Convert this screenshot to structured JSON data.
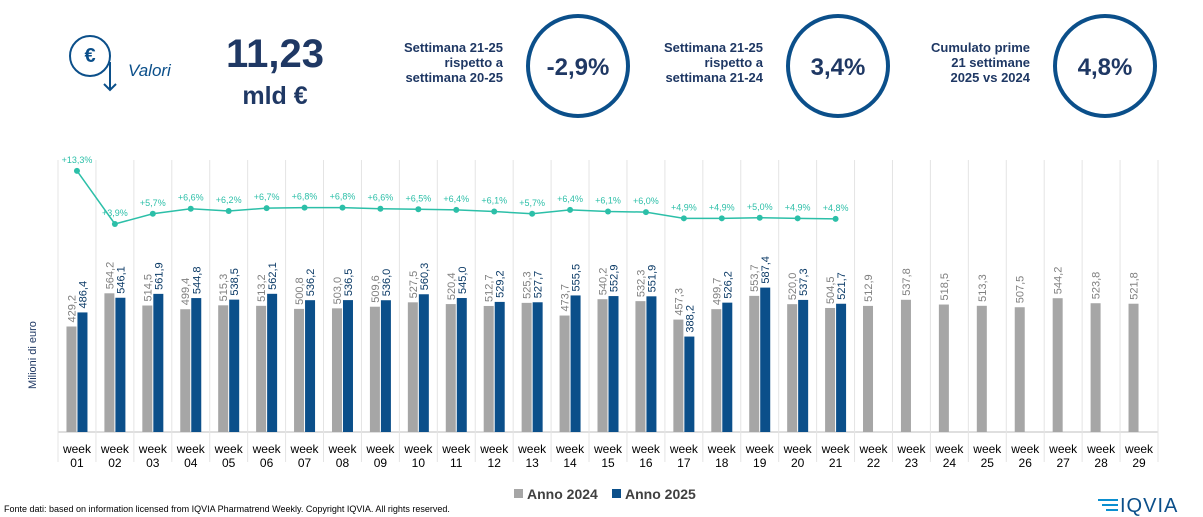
{
  "header": {
    "icon_symbol": "€",
    "icon_label": "Valori",
    "total_value": "11,23",
    "total_unit": "mld €",
    "kpis": [
      {
        "lines": [
          "Settimana 21-25",
          "rispetto a",
          "settimana 20-25"
        ],
        "value": "-2,9%"
      },
      {
        "lines": [
          "Settimana 21-25",
          "rispetto a",
          "settimana 21-24"
        ],
        "value": "3,4%"
      },
      {
        "lines": [
          "Cumulato prime",
          "21 settimane",
          "2025 vs 2024"
        ],
        "value": "4,8%"
      }
    ]
  },
  "chart_data": {
    "type": "bar",
    "y_axis_label": "Milioni di euro",
    "categories": [
      "week 01",
      "week 02",
      "week 03",
      "week 04",
      "week 05",
      "week 06",
      "week 07",
      "week 08",
      "week 09",
      "week 10",
      "week 11",
      "week 12",
      "week 13",
      "week 14",
      "week 15",
      "week 16",
      "week 17",
      "week 18",
      "week 19",
      "week 20",
      "week 21",
      "week 22",
      "week 23",
      "week 24",
      "week 25",
      "week 26",
      "week 27",
      "week 28",
      "week 29"
    ],
    "ylim": [
      0,
      1200
    ],
    "y2lim": [
      0,
      20
    ],
    "legend": "bottom",
    "series": [
      {
        "name": "Anno 2024",
        "color": "#a6a6a6",
        "values": [
          429.2,
          564.2,
          514.5,
          499.4,
          515.3,
          513.2,
          500.8,
          503.0,
          509.6,
          527.5,
          520.4,
          512.7,
          525.3,
          473.7,
          540.2,
          532.3,
          457.3,
          499.7,
          553.7,
          520.0,
          504.5,
          512.9,
          537.8,
          518.5,
          513.3,
          507.5,
          544.2,
          523.8,
          521.8
        ],
        "value_labels": [
          "429,2",
          "564,2",
          "514,5",
          "499,4",
          "515,3",
          "513,2",
          "500,8",
          "503,0",
          "509,6",
          "527,5",
          "520,4",
          "512,7",
          "525,3",
          "473,7",
          "540,2",
          "532,3",
          "457,3",
          "499,7",
          "553,7",
          "520,0",
          "504,5",
          "512,9",
          "537,8",
          "518,5",
          "513,3",
          "507,5",
          "544,2",
          "523,8",
          "521,8"
        ]
      },
      {
        "name": "Anno 2025",
        "color": "#0b4f8a",
        "values": [
          486.4,
          546.1,
          561.9,
          544.8,
          538.5,
          562.1,
          536.2,
          536.5,
          536.0,
          560.3,
          545.0,
          529.2,
          527.7,
          555.5,
          552.9,
          551.9,
          388.2,
          526.2,
          587.4,
          537.3,
          521.7,
          null,
          null,
          null,
          null,
          null,
          null,
          null,
          null
        ],
        "value_labels": [
          "486,4",
          "546,1",
          "561,9",
          "544,8",
          "538,5",
          "562,1",
          "536,2",
          "536,5",
          "536,0",
          "560,3",
          "545,0",
          "529,2",
          "527,7",
          "555,5",
          "552,9",
          "551,9",
          "388,2",
          "526,2",
          "587,4",
          "537,3",
          "521,7",
          null,
          null,
          null,
          null,
          null,
          null,
          null,
          null
        ]
      },
      {
        "type": "line",
        "axis": "y2",
        "color": "#2cbfa8",
        "values": [
          13.3,
          3.9,
          5.7,
          6.6,
          6.2,
          6.7,
          6.8,
          6.8,
          6.6,
          6.5,
          6.4,
          6.1,
          5.7,
          6.4,
          6.1,
          6.0,
          4.9,
          4.9,
          5.0,
          4.9,
          4.8,
          null,
          null,
          null,
          null,
          null,
          null,
          null,
          null
        ],
        "value_labels": [
          "+13,3%",
          "+3,9%",
          "+5,7%",
          "+6,6%",
          "+6,2%",
          "+6,7%",
          "+6,8%",
          "+6,8%",
          "+6,6%",
          "+6,5%",
          "+6,4%",
          "+6,1%",
          "+5,7%",
          "+6,4%",
          "+6,1%",
          "+6,0%",
          "+4,9%",
          "+4,9%",
          "+5,0%",
          "+4,9%",
          "+4,8%",
          null,
          null,
          null,
          null,
          null,
          null,
          null,
          null
        ]
      }
    ]
  },
  "footer": {
    "source": "Fonte dati: based on information licensed from IQVIA Pharmatrend Weekly. Copyright IQVIA. All rights reserved.",
    "logo": "IQVIA"
  }
}
